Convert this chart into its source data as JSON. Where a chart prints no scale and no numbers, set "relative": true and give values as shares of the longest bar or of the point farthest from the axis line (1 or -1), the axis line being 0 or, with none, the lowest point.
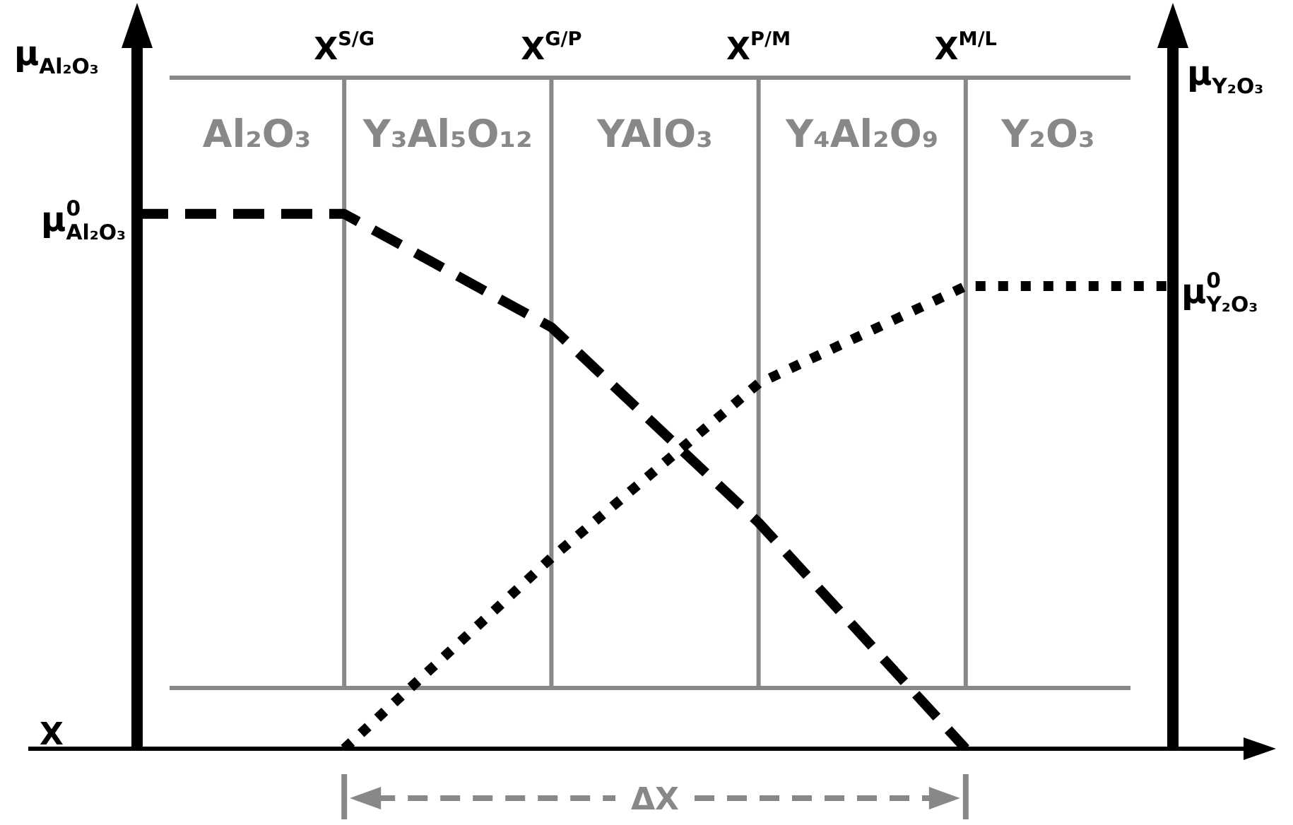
{
  "chart_data": {
    "type": "line",
    "relative": true,
    "xlabel": "X",
    "ylabel": "μ$_{Al₂O₃}$",
    "y2label": "μ$_{Y₂O₃}$",
    "grid": "x",
    "categories": [
      null,
      "X$^{S/G}$",
      "X$^{G/P}$",
      "X$^{P/M}$",
      "X$^{M/L}$",
      null
    ],
    "series": [
      {
        "name": "μ$^{0}$$_{Al₂O₃}$",
        "color": "#000000",
        "line_style": "dashed",
        "values": [
          1,
          1,
          0.788,
          0.423,
          0,
          null
        ]
      },
      {
        "name": "μ$^{0}$$_{Y₂O₃}$",
        "color": "#000000",
        "line_style": "dotted",
        "values": [
          null,
          0,
          0.357,
          0.683,
          0.865,
          0.865
        ]
      }
    ],
    "annotations": [
      "Al₂O₃",
      "Y₃Al₅O₁₂",
      "YAlO₃",
      "Y₄Al₂O₉",
      "Y₂O₃",
      "ΔX"
    ]
  }
}
